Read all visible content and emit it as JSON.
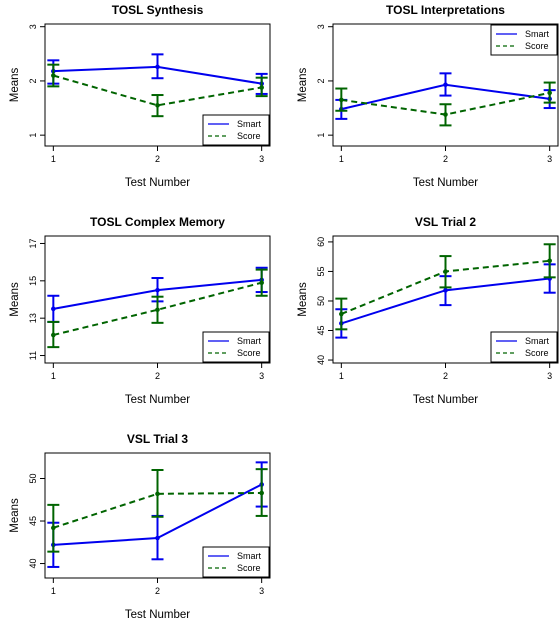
{
  "chart_data": [
    {
      "type": "line",
      "title": "TOSL Synthesis",
      "xlabel": "Test Number",
      "ylabel": "Means",
      "x": [
        1,
        2,
        3
      ],
      "xticks": [
        "1",
        "2",
        "3"
      ],
      "yticks": [
        "1",
        "2",
        "3"
      ],
      "ylim": [
        0.8,
        3.05
      ],
      "legend_position": "bottom-right",
      "series": [
        {
          "name": "Smart",
          "color": "#0000ee",
          "style": "solid",
          "values": [
            2.18,
            2.26,
            1.95
          ],
          "err_low": [
            1.95,
            2.05,
            1.76
          ],
          "err_high": [
            2.38,
            2.49,
            2.13
          ]
        },
        {
          "name": "Score",
          "color": "#006400",
          "style": "dashed",
          "values": [
            2.1,
            1.55,
            1.88
          ],
          "err_low": [
            1.9,
            1.35,
            1.72
          ],
          "err_high": [
            2.3,
            1.74,
            2.06
          ]
        }
      ]
    },
    {
      "type": "line",
      "title": "TOSL Interpretations",
      "xlabel": "Test Number",
      "ylabel": "Means",
      "x": [
        1,
        2,
        3
      ],
      "xticks": [
        "1",
        "2",
        "3"
      ],
      "yticks": [
        "1",
        "2",
        "3"
      ],
      "ylim": [
        0.8,
        3.05
      ],
      "legend_position": "top-right",
      "series": [
        {
          "name": "Smart",
          "color": "#0000ee",
          "style": "solid",
          "values": [
            1.48,
            1.93,
            1.67
          ],
          "err_low": [
            1.3,
            1.73,
            1.5
          ],
          "err_high": [
            1.65,
            2.14,
            1.83
          ]
        },
        {
          "name": "Score",
          "color": "#006400",
          "style": "dashed",
          "values": [
            1.65,
            1.38,
            1.78
          ],
          "err_low": [
            1.45,
            1.18,
            1.6
          ],
          "err_high": [
            1.86,
            1.57,
            1.97
          ]
        }
      ]
    },
    {
      "type": "line",
      "title": "TOSL Complex Memory",
      "xlabel": "Test Number",
      "ylabel": "Means",
      "x": [
        1,
        2,
        3
      ],
      "xticks": [
        "1",
        "2",
        "3"
      ],
      "yticks": [
        "11",
        "13",
        "15",
        "17"
      ],
      "ylim": [
        10.6,
        17.4
      ],
      "legend_position": "bottom-right",
      "series": [
        {
          "name": "Smart",
          "color": "#0000ee",
          "style": "solid",
          "values": [
            13.5,
            14.5,
            15.05
          ],
          "err_low": [
            12.8,
            13.9,
            14.4
          ],
          "err_high": [
            14.2,
            15.15,
            15.7
          ]
        },
        {
          "name": "Score",
          "color": "#006400",
          "style": "dashed",
          "values": [
            12.1,
            13.45,
            14.9
          ],
          "err_low": [
            11.45,
            12.75,
            14.2
          ],
          "err_high": [
            12.8,
            14.15,
            15.6
          ]
        }
      ]
    },
    {
      "type": "line",
      "title": "VSL Trial 2",
      "xlabel": "Test Number",
      "ylabel": "Means",
      "x": [
        1,
        2,
        3
      ],
      "xticks": [
        "1",
        "2",
        "3"
      ],
      "yticks": [
        "40",
        "45",
        "50",
        "55",
        "60"
      ],
      "ylim": [
        39.5,
        61
      ],
      "legend_position": "bottom-right",
      "series": [
        {
          "name": "Smart",
          "color": "#0000ee",
          "style": "solid",
          "values": [
            46.2,
            51.8,
            53.8
          ],
          "err_low": [
            43.8,
            49.3,
            51.4
          ],
          "err_high": [
            48.6,
            54.2,
            56.2
          ]
        },
        {
          "name": "Score",
          "color": "#006400",
          "style": "dashed",
          "values": [
            47.8,
            55.0,
            56.8
          ],
          "err_low": [
            45.2,
            52.3,
            54.0
          ],
          "err_high": [
            50.4,
            57.6,
            59.6
          ]
        }
      ]
    },
    {
      "type": "line",
      "title": "VSL Trial 3",
      "xlabel": "Test Number",
      "ylabel": "Means",
      "x": [
        1,
        2,
        3
      ],
      "xticks": [
        "1",
        "2",
        "3"
      ],
      "yticks": [
        "40",
        "45",
        "50"
      ],
      "ylim": [
        38.3,
        53
      ],
      "legend_position": "bottom-right",
      "series": [
        {
          "name": "Smart",
          "color": "#0000ee",
          "style": "solid",
          "values": [
            42.2,
            43.0,
            49.3
          ],
          "err_low": [
            39.6,
            40.5,
            46.7
          ],
          "err_high": [
            44.8,
            45.6,
            51.9
          ]
        },
        {
          "name": "Score",
          "color": "#006400",
          "style": "dashed",
          "values": [
            44.2,
            48.2,
            48.3
          ],
          "err_low": [
            41.4,
            45.5,
            45.6
          ],
          "err_high": [
            46.9,
            51.0,
            51.1
          ]
        }
      ]
    }
  ]
}
